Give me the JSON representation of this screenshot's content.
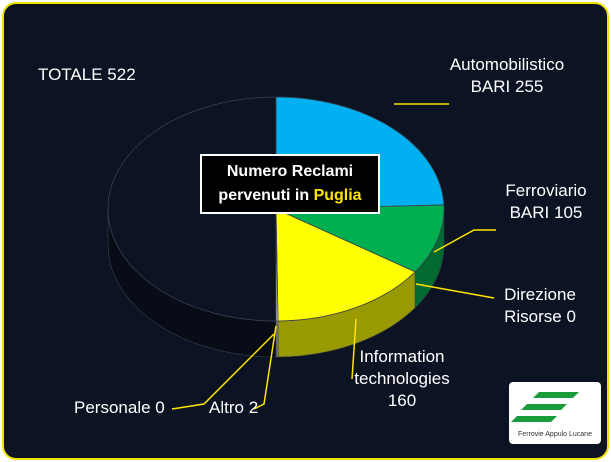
{
  "chart_data": {
    "type": "pie3d",
    "title": "Numero Reclami",
    "title_line2": "pervenuti in",
    "title_highlight": "Puglia",
    "categories": [
      "Automobilistico BARI",
      "Ferroviario BARI",
      "Direzione Risorse",
      "Information technologies",
      "Altro",
      "Personale",
      "TOTALE"
    ],
    "values": [
      255,
      105,
      0,
      160,
      2,
      0,
      522
    ],
    "colors": [
      "#00b0f0",
      "#00b050",
      "#7f7f7f",
      "#ffff00",
      "#d9d9d9",
      "#bfbfbf",
      "#0c1424"
    ],
    "logo_text": "Ferrovie Appulo Lucane"
  }
}
